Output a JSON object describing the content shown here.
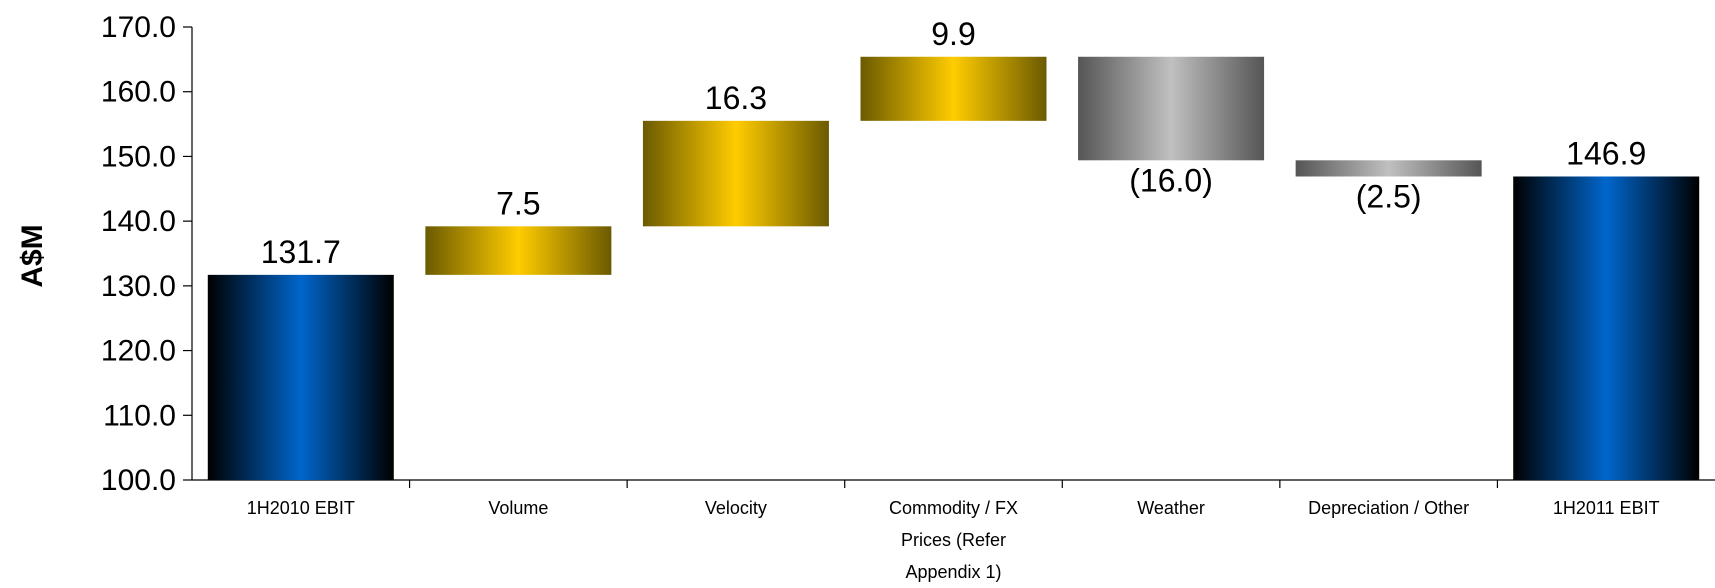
{
  "chart_data": {
    "type": "bar",
    "subtype": "waterfall",
    "ylabel": "A$M",
    "ylim": [
      100,
      170
    ],
    "yticks": [
      "100.0",
      "110.0",
      "120.0",
      "130.0",
      "140.0",
      "150.0",
      "160.0",
      "170.0"
    ],
    "grid": false,
    "categories": [
      [
        "1H2010 EBIT"
      ],
      [
        "Volume"
      ],
      [
        "Velocity"
      ],
      [
        "Commodity / FX",
        "Prices (Refer",
        "Appendix 1)"
      ],
      [
        "Weather"
      ],
      [
        "Depreciation / Other"
      ],
      [
        "1H2011 EBIT"
      ]
    ],
    "bars": [
      {
        "kind": "total",
        "start": 100,
        "end": 131.7,
        "label": "131.7",
        "style": "blue"
      },
      {
        "kind": "increase",
        "start": 131.7,
        "end": 139.2,
        "label": "7.5",
        "style": "gold"
      },
      {
        "kind": "increase",
        "start": 139.2,
        "end": 155.5,
        "label": "16.3",
        "style": "gold"
      },
      {
        "kind": "increase",
        "start": 155.5,
        "end": 165.4,
        "label": "9.9",
        "style": "gold"
      },
      {
        "kind": "decrease",
        "start": 165.4,
        "end": 149.4,
        "label": "(16.0)",
        "style": "grey"
      },
      {
        "kind": "decrease",
        "start": 149.4,
        "end": 146.9,
        "label": "(2.5)",
        "style": "grey"
      },
      {
        "kind": "total",
        "start": 100,
        "end": 146.9,
        "label": "146.9",
        "style": "blue"
      }
    ],
    "colors": {
      "total_dark": "#000000",
      "total_mid": "#0066cc",
      "increase_dark": "#6b5a00",
      "increase_mid": "#ffcc00",
      "decrease_dark": "#555555",
      "decrease_mid": "#c0c0c0"
    }
  }
}
